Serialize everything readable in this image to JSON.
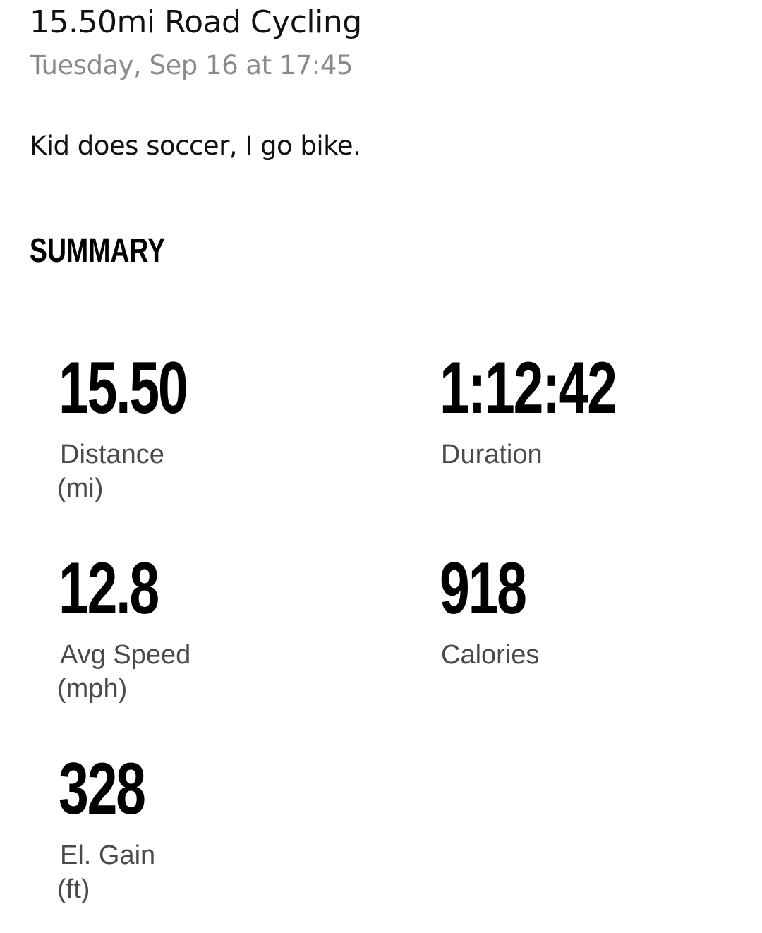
{
  "activity": {
    "title": "15.50mi Road Cycling",
    "date": "Tuesday, Sep 16 at 17:45",
    "description": "Kid does soccer, I go bike."
  },
  "summary": {
    "heading": "SUMMARY",
    "stats": {
      "distance": {
        "value": "15.50",
        "label": "Distance",
        "unit": "(mi)"
      },
      "duration": {
        "value": "1:12:42",
        "label": "Duration"
      },
      "avg_speed": {
        "value": "12.8",
        "label": "Avg Speed",
        "unit": "(mph)"
      },
      "calories": {
        "value": "918",
        "label": "Calories"
      },
      "elevation_gain": {
        "value": "328",
        "label": "El. Gain",
        "unit": "(ft)"
      }
    }
  },
  "colors": {
    "text_primary": "#111111",
    "text_secondary": "#8a8a8a",
    "label": "#4a4a4a",
    "background": "#ffffff"
  }
}
